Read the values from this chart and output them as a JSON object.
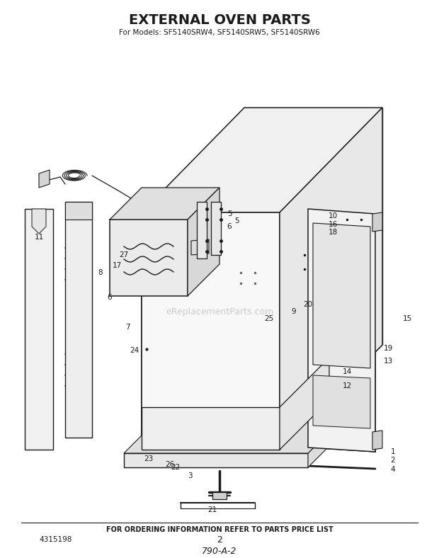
{
  "title": "EXTERNAL OVEN PARTS",
  "subtitle": "For Models: SF5140SRW4, SF5140SRW5, SF5140SRW6",
  "footer_text": "FOR ORDERING INFORMATION REFER TO PARTS PRICE LIST",
  "page_number": "2",
  "part_number": "4315198",
  "diagram_code": "790-A-2",
  "bg_color": "#ffffff",
  "line_color": "#1a1a1a",
  "watermark": "eReplacementParts.com",
  "lw_main": 1.0,
  "lw_thin": 0.6,
  "lw_thick": 1.5
}
